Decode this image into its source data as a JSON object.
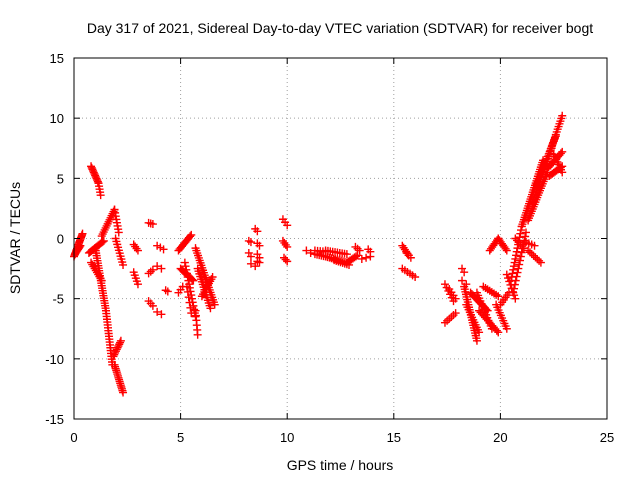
{
  "chart_data": {
    "type": "scatter",
    "title": "Day 317 of 2021, Sidereal Day-to-day VTEC variation (SDTVAR) for receiver bogt",
    "xlabel": "GPS time / hours",
    "ylabel": "SDTVAR / TECUs",
    "xlim": [
      0,
      25
    ],
    "ylim": [
      -15,
      15
    ],
    "xticks": [
      0,
      5,
      10,
      15,
      20,
      25
    ],
    "yticks": [
      -15,
      -10,
      -5,
      0,
      5,
      10,
      15
    ],
    "xtick_labels": [
      "0",
      "5",
      "10",
      "15",
      "20",
      "25"
    ],
    "ytick_labels": [
      "-15",
      "-10",
      "-5",
      "0",
      "5",
      "10",
      "15"
    ],
    "grid": true,
    "marker": "+",
    "color": "#ff0000",
    "series_segments": [
      {
        "x0": 0.0,
        "y0": -1.5,
        "x1": 0.4,
        "y1": 0.4,
        "n": 18
      },
      {
        "x0": 0.05,
        "y0": -1.3,
        "x1": 0.3,
        "y1": -0.6,
        "n": 8
      },
      {
        "x0": 0.8,
        "y0": 6.0,
        "x1": 1.15,
        "y1": 4.6,
        "n": 12
      },
      {
        "x0": 1.15,
        "y0": 4.6,
        "x1": 1.25,
        "y1": 3.6,
        "n": 5
      },
      {
        "x0": 0.7,
        "y0": -1.2,
        "x1": 1.4,
        "y1": -0.2,
        "n": 14
      },
      {
        "x0": 0.8,
        "y0": -2.0,
        "x1": 1.3,
        "y1": -3.5,
        "n": 10
      },
      {
        "x0": 1.0,
        "y0": -0.8,
        "x1": 1.5,
        "y1": -6.0,
        "n": 26
      },
      {
        "x0": 1.5,
        "y0": -6.0,
        "x1": 1.8,
        "y1": -10.5,
        "n": 20
      },
      {
        "x0": 1.3,
        "y0": 0.2,
        "x1": 1.9,
        "y1": 2.4,
        "n": 14
      },
      {
        "x0": 1.9,
        "y0": 2.4,
        "x1": 2.1,
        "y1": 0.5,
        "n": 8
      },
      {
        "x0": 1.95,
        "y0": 0.0,
        "x1": 2.3,
        "y1": -2.2,
        "n": 10
      },
      {
        "x0": 1.85,
        "y0": -9.8,
        "x1": 2.2,
        "y1": -8.5,
        "n": 10
      },
      {
        "x0": 1.9,
        "y0": -10.5,
        "x1": 2.3,
        "y1": -12.8,
        "n": 16
      },
      {
        "x0": 2.8,
        "y0": -0.5,
        "x1": 3.0,
        "y1": -1.0,
        "n": 4
      },
      {
        "x0": 2.8,
        "y0": -2.8,
        "x1": 3.0,
        "y1": -3.8,
        "n": 5
      },
      {
        "x0": 3.5,
        "y0": 1.3,
        "x1": 3.7,
        "y1": 1.2,
        "n": 3
      },
      {
        "x0": 3.5,
        "y0": -2.9,
        "x1": 3.7,
        "y1": -2.6,
        "n": 3
      },
      {
        "x0": 3.5,
        "y0": -5.2,
        "x1": 3.7,
        "y1": -5.6,
        "n": 3
      },
      {
        "x0": 3.9,
        "y0": -0.6,
        "x1": 4.2,
        "y1": -0.9,
        "n": 3
      },
      {
        "x0": 3.9,
        "y0": -2.3,
        "x1": 4.1,
        "y1": -2.5,
        "n": 2
      },
      {
        "x0": 3.9,
        "y0": -6.1,
        "x1": 4.1,
        "y1": -6.3,
        "n": 2
      },
      {
        "x0": 4.3,
        "y0": -4.3,
        "x1": 4.4,
        "y1": -4.4,
        "n": 2
      },
      {
        "x0": 4.9,
        "y0": -4.5,
        "x1": 5.1,
        "y1": -4.0,
        "n": 3
      },
      {
        "x0": 4.9,
        "y0": -1.0,
        "x1": 5.5,
        "y1": 0.3,
        "n": 12
      },
      {
        "x0": 5.0,
        "y0": -2.5,
        "x1": 5.6,
        "y1": -3.5,
        "n": 12
      },
      {
        "x0": 5.2,
        "y0": -2.0,
        "x1": 5.7,
        "y1": -6.5,
        "n": 16
      },
      {
        "x0": 5.3,
        "y0": -4.0,
        "x1": 5.5,
        "y1": -6.2,
        "n": 6
      },
      {
        "x0": 5.7,
        "y0": -6.0,
        "x1": 5.8,
        "y1": -8.0,
        "n": 6
      },
      {
        "x0": 5.7,
        "y0": -0.8,
        "x1": 6.6,
        "y1": -5.5,
        "n": 24
      },
      {
        "x0": 5.8,
        "y0": -2.5,
        "x1": 6.4,
        "y1": -5.8,
        "n": 16
      },
      {
        "x0": 6.0,
        "y0": -4.8,
        "x1": 6.5,
        "y1": -3.2,
        "n": 10
      },
      {
        "x0": 8.2,
        "y0": -0.2,
        "x1": 8.3,
        "y1": -0.3,
        "n": 2
      },
      {
        "x0": 8.2,
        "y0": -1.2,
        "x1": 8.3,
        "y1": -1.5,
        "n": 2
      },
      {
        "x0": 8.3,
        "y0": -2.1,
        "x1": 8.5,
        "y1": -2.3,
        "n": 2
      },
      {
        "x0": 8.5,
        "y0": 0.8,
        "x1": 8.6,
        "y1": 0.6,
        "n": 2
      },
      {
        "x0": 8.6,
        "y0": -0.4,
        "x1": 8.7,
        "y1": -0.6,
        "n": 2
      },
      {
        "x0": 8.6,
        "y0": -1.3,
        "x1": 8.7,
        "y1": -1.6,
        "n": 2
      },
      {
        "x0": 8.6,
        "y0": -1.9,
        "x1": 8.7,
        "y1": -2.0,
        "n": 2
      },
      {
        "x0": 9.8,
        "y0": 1.6,
        "x1": 10.0,
        "y1": 1.1,
        "n": 3
      },
      {
        "x0": 9.8,
        "y0": -0.2,
        "x1": 10.0,
        "y1": -0.7,
        "n": 4
      },
      {
        "x0": 9.85,
        "y0": -1.6,
        "x1": 10.0,
        "y1": -1.9,
        "n": 3
      },
      {
        "x0": 10.9,
        "y0": -1.0,
        "x1": 11.1,
        "y1": -1.2,
        "n": 2
      },
      {
        "x0": 11.3,
        "y0": -1.3,
        "x1": 11.8,
        "y1": -1.5,
        "n": 6
      },
      {
        "x0": 11.3,
        "y0": -1.0,
        "x1": 11.8,
        "y1": -1.1,
        "n": 5
      },
      {
        "x0": 11.8,
        "y0": -1.5,
        "x1": 12.8,
        "y1": -2.0,
        "n": 12
      },
      {
        "x0": 11.8,
        "y0": -1.0,
        "x1": 12.8,
        "y1": -1.3,
        "n": 10
      },
      {
        "x0": 12.2,
        "y0": -1.8,
        "x1": 12.9,
        "y1": -2.2,
        "n": 8
      },
      {
        "x0": 12.8,
        "y0": -2.0,
        "x1": 13.3,
        "y1": -1.4,
        "n": 8
      },
      {
        "x0": 13.2,
        "y0": -0.7,
        "x1": 13.4,
        "y1": -1.0,
        "n": 3
      },
      {
        "x0": 13.5,
        "y0": -1.7,
        "x1": 13.9,
        "y1": -1.5,
        "n": 3
      },
      {
        "x0": 13.8,
        "y0": -0.9,
        "x1": 13.9,
        "y1": -1.1,
        "n": 2
      },
      {
        "x0": 15.4,
        "y0": -0.6,
        "x1": 15.7,
        "y1": -1.4,
        "n": 6
      },
      {
        "x0": 15.6,
        "y0": -1.2,
        "x1": 15.8,
        "y1": -1.6,
        "n": 3
      },
      {
        "x0": 15.4,
        "y0": -2.5,
        "x1": 16.0,
        "y1": -3.2,
        "n": 6
      },
      {
        "x0": 17.4,
        "y0": -3.8,
        "x1": 17.8,
        "y1": -5.2,
        "n": 6
      },
      {
        "x0": 17.6,
        "y0": -4.2,
        "x1": 17.9,
        "y1": -5.0,
        "n": 4
      },
      {
        "x0": 17.4,
        "y0": -7.0,
        "x1": 17.9,
        "y1": -6.2,
        "n": 6
      },
      {
        "x0": 18.2,
        "y0": -2.5,
        "x1": 18.3,
        "y1": -2.8,
        "n": 2
      },
      {
        "x0": 18.2,
        "y0": -3.5,
        "x1": 18.4,
        "y1": -3.8,
        "n": 2
      },
      {
        "x0": 18.3,
        "y0": -4.0,
        "x1": 18.9,
        "y1": -8.5,
        "n": 22
      },
      {
        "x0": 18.4,
        "y0": -5.5,
        "x1": 19.0,
        "y1": -7.8,
        "n": 12
      },
      {
        "x0": 18.6,
        "y0": -4.5,
        "x1": 19.4,
        "y1": -6.0,
        "n": 14
      },
      {
        "x0": 18.9,
        "y0": -4.5,
        "x1": 19.6,
        "y1": -7.5,
        "n": 14
      },
      {
        "x0": 19.0,
        "y0": -6.0,
        "x1": 19.9,
        "y1": -7.8,
        "n": 14
      },
      {
        "x0": 19.2,
        "y0": -4.0,
        "x1": 19.9,
        "y1": -4.8,
        "n": 8
      },
      {
        "x0": 19.8,
        "y0": -5.5,
        "x1": 20.3,
        "y1": -7.5,
        "n": 10
      },
      {
        "x0": 19.5,
        "y0": -1.0,
        "x1": 19.9,
        "y1": 0.0,
        "n": 8
      },
      {
        "x0": 19.9,
        "y0": 0.0,
        "x1": 20.3,
        "y1": -1.0,
        "n": 8
      },
      {
        "x0": 20.3,
        "y0": -3.0,
        "x1": 20.7,
        "y1": -5.0,
        "n": 8
      },
      {
        "x0": 20.0,
        "y0": -5.5,
        "x1": 20.4,
        "y1": -4.5,
        "n": 6
      },
      {
        "x0": 20.5,
        "y0": -3.5,
        "x1": 21.0,
        "y1": 1.0,
        "n": 16
      },
      {
        "x0": 20.6,
        "y0": -4.5,
        "x1": 21.2,
        "y1": 0.5,
        "n": 16
      },
      {
        "x0": 20.7,
        "y0": 0.0,
        "x1": 21.1,
        "y1": -0.8,
        "n": 6
      },
      {
        "x0": 21.0,
        "y0": 1.0,
        "x1": 22.0,
        "y1": 6.5,
        "n": 30
      },
      {
        "x0": 21.2,
        "y0": -0.3,
        "x1": 21.6,
        "y1": -0.6,
        "n": 4
      },
      {
        "x0": 21.3,
        "y0": -1.0,
        "x1": 21.9,
        "y1": -2.0,
        "n": 8
      },
      {
        "x0": 21.3,
        "y0": 1.5,
        "x1": 22.2,
        "y1": 5.5,
        "n": 22
      },
      {
        "x0": 21.5,
        "y0": 3.0,
        "x1": 22.4,
        "y1": 7.5,
        "n": 22
      },
      {
        "x0": 21.7,
        "y0": 4.5,
        "x1": 22.6,
        "y1": 8.5,
        "n": 20
      },
      {
        "x0": 22.0,
        "y0": 5.5,
        "x1": 22.9,
        "y1": 10.2,
        "n": 22
      },
      {
        "x0": 22.2,
        "y0": 5.8,
        "x1": 22.9,
        "y1": 7.2,
        "n": 12
      },
      {
        "x0": 22.3,
        "y0": 5.2,
        "x1": 22.9,
        "y1": 6.0,
        "n": 10
      },
      {
        "x0": 22.5,
        "y0": 7.0,
        "x1": 22.9,
        "y1": 5.5,
        "n": 8
      }
    ]
  }
}
